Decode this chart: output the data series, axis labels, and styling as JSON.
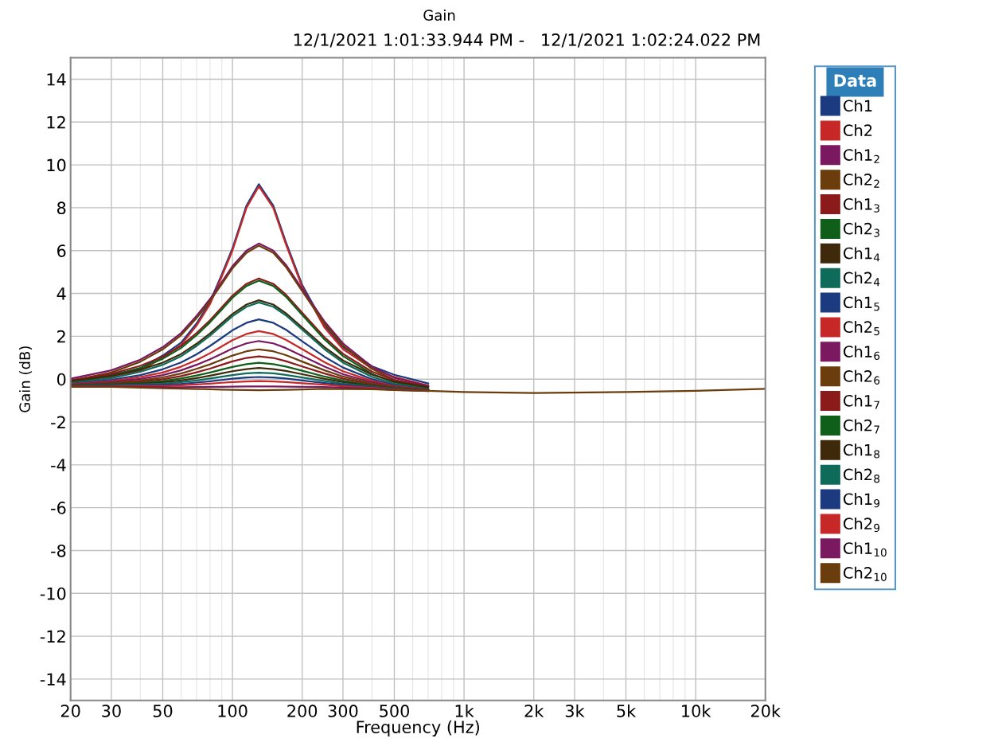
{
  "chart_data": {
    "type": "line",
    "title": "Gain",
    "subtitle": "12/1/2021 1:01:33.944 PM -   12/1/2021 1:02:24.022 PM",
    "xlabel": "Frequency (Hz)",
    "ylabel": "Gain (dB)",
    "legend_title": "Data",
    "log": "x",
    "grid": true,
    "legend": "right",
    "marker": "none",
    "line_style": "solid",
    "x": [
      20,
      30,
      40,
      50,
      60,
      70,
      80,
      90,
      100,
      115,
      130,
      150,
      170,
      200,
      250,
      300,
      400,
      500,
      700,
      1000,
      2000,
      5000,
      10000,
      20000
    ],
    "xlim": [
      20,
      20000
    ],
    "ylim": [
      -15,
      15
    ],
    "xticks": [
      20,
      30,
      50,
      100,
      200,
      300,
      500,
      {
        "value": 1000,
        "label": "1k"
      },
      {
        "value": 2000,
        "label": "2k"
      },
      {
        "value": 3000,
        "label": "3k"
      },
      {
        "value": 5000,
        "label": "5k"
      },
      {
        "value": 10000,
        "label": "10k"
      },
      {
        "value": 20000,
        "label": "20k"
      }
    ],
    "yticks": [
      -14,
      -12,
      -10,
      -8,
      -6,
      -4,
      -2,
      0,
      2,
      4,
      6,
      8,
      10,
      12,
      14
    ],
    "series": [
      {
        "name": "Ch1",
        "color": "#1c3a80",
        "values": [
          -0.1,
          0.2,
          0.5,
          1.1,
          1.7,
          2.6,
          3.6,
          4.9,
          6.1,
          8.1,
          9.1,
          8.1,
          6.4,
          4.4,
          2.5,
          1.5,
          0.6,
          0.2,
          -0.2,
          null,
          null,
          null,
          null,
          null
        ]
      },
      {
        "name": "Ch2",
        "color": "#c62828",
        "values": [
          -0.2,
          0.1,
          0.4,
          1.0,
          1.6,
          2.5,
          3.5,
          4.8,
          6.0,
          8.0,
          9.0,
          8.0,
          6.3,
          4.3,
          2.4,
          1.4,
          0.5,
          0.1,
          -0.3,
          null,
          null,
          null,
          null,
          null
        ]
      },
      {
        "name": "Ch1$_{2}$",
        "color": "#7a1860",
        "values": [
          0.02,
          0.41,
          0.91,
          1.49,
          2.15,
          2.95,
          3.74,
          4.54,
          5.27,
          6.0,
          6.33,
          6.0,
          5.34,
          4.21,
          2.68,
          1.67,
          0.58,
          0.06,
          -0.32,
          null,
          null,
          null,
          null,
          null
        ]
      },
      {
        "name": "Ch2$_{2}$",
        "color": "#6b3d0c",
        "values": [
          -0.08,
          0.31,
          0.81,
          1.39,
          2.05,
          2.85,
          3.64,
          4.44,
          5.17,
          5.9,
          6.23,
          5.9,
          5.24,
          4.11,
          2.58,
          1.57,
          0.48,
          -0.04,
          -0.42,
          null,
          null,
          null,
          null,
          null
        ]
      },
      {
        "name": "Ch1$_{3}$",
        "color": "#8b1a1a",
        "values": [
          -0.05,
          0.25,
          0.62,
          1.05,
          1.55,
          2.15,
          2.75,
          3.35,
          3.9,
          4.45,
          4.7,
          4.45,
          3.95,
          3.1,
          1.95,
          1.18,
          0.35,
          -0.05,
          -0.35,
          null,
          null,
          null,
          null,
          null
        ]
      },
      {
        "name": "Ch2$_{3}$",
        "color": "#0f5f1a",
        "values": [
          -0.15,
          0.15,
          0.52,
          0.95,
          1.45,
          2.05,
          2.65,
          3.25,
          3.8,
          4.35,
          4.6,
          4.35,
          3.85,
          3.0,
          1.85,
          1.08,
          0.25,
          -0.15,
          -0.45,
          null,
          null,
          null,
          null,
          null
        ]
      },
      {
        "name": "Ch1$_{4}$",
        "color": "#3e2a0a",
        "values": [
          -0.09,
          0.15,
          0.44,
          0.77,
          1.17,
          1.65,
          2.13,
          2.61,
          3.04,
          3.48,
          3.68,
          3.48,
          3.08,
          2.41,
          1.49,
          0.87,
          0.21,
          -0.12,
          -0.37,
          null,
          null,
          null,
          null,
          null
        ]
      },
      {
        "name": "Ch2$_{4}$",
        "color": "#0e6b5a",
        "values": [
          -0.19,
          0.05,
          0.34,
          0.67,
          1.07,
          1.55,
          2.03,
          2.51,
          2.94,
          3.38,
          3.58,
          3.38,
          2.98,
          2.31,
          1.39,
          0.77,
          0.11,
          -0.22,
          -0.47,
          null,
          null,
          null,
          null,
          null
        ]
      },
      {
        "name": "Ch1$_{5}$",
        "color": "#1c3a80",
        "values": [
          -0.22,
          -0.03,
          0.19,
          0.46,
          0.78,
          1.16,
          1.55,
          1.93,
          2.28,
          2.63,
          2.79,
          2.63,
          2.31,
          1.77,
          1.04,
          0.54,
          0.0,
          -0.28,
          -0.49,
          null,
          null,
          null,
          null,
          null
        ]
      },
      {
        "name": "Ch2$_{5}$",
        "color": "#c62828",
        "values": [
          -0.24,
          -0.09,
          0.1,
          0.31,
          0.58,
          0.89,
          1.21,
          1.53,
          1.82,
          2.11,
          2.24,
          2.11,
          1.84,
          1.4,
          0.79,
          0.37,
          -0.08,
          -0.32,
          -0.5,
          null,
          null,
          null,
          null,
          null
        ]
      },
      {
        "name": "Ch1$_{6}$",
        "color": "#7a1860",
        "values": [
          -0.26,
          -0.13,
          0.01,
          0.19,
          0.41,
          0.67,
          0.93,
          1.19,
          1.43,
          1.67,
          1.78,
          1.67,
          1.45,
          1.08,
          0.58,
          0.23,
          -0.14,
          -0.35,
          -0.51,
          null,
          null,
          null,
          null,
          null
        ]
      },
      {
        "name": "Ch2$_{6}$",
        "color": "#6b3d0c",
        "values": [
          -0.28,
          -0.17,
          -0.06,
          0.08,
          0.26,
          0.48,
          0.69,
          0.91,
          1.1,
          1.3,
          1.39,
          1.3,
          1.12,
          0.82,
          0.41,
          0.12,
          -0.2,
          -0.37,
          -0.51,
          null,
          null,
          null,
          null,
          null
        ]
      },
      {
        "name": "Ch1$_{7}$",
        "color": "#8b1a1a",
        "values": [
          -0.29,
          -0.2,
          -0.12,
          -0.01,
          0.14,
          0.32,
          0.49,
          0.67,
          0.83,
          0.99,
          1.06,
          0.99,
          0.84,
          0.59,
          0.26,
          0.02,
          -0.25,
          -0.4,
          -0.52,
          null,
          null,
          null,
          null,
          null
        ]
      },
      {
        "name": "Ch2$_{7}$",
        "color": "#0f5f1a",
        "values": [
          -0.3,
          -0.23,
          -0.17,
          -0.09,
          0.03,
          0.17,
          0.31,
          0.45,
          0.57,
          0.7,
          0.76,
          0.7,
          0.59,
          0.39,
          0.12,
          -0.07,
          -0.29,
          -0.42,
          -0.53,
          null,
          null,
          null,
          null,
          null
        ]
      },
      {
        "name": "Ch1$_{8}$",
        "color": "#3e2a0a",
        "values": [
          -0.31,
          -0.26,
          -0.21,
          -0.15,
          -0.06,
          0.05,
          0.16,
          0.27,
          0.37,
          0.47,
          0.52,
          0.47,
          0.38,
          0.23,
          0.01,
          -0.14,
          -0.32,
          -0.44,
          -0.53,
          null,
          null,
          null,
          null,
          null
        ]
      },
      {
        "name": "Ch2$_{8}$",
        "color": "#0e6b5a",
        "values": [
          -0.32,
          -0.28,
          -0.25,
          -0.21,
          -0.14,
          -0.06,
          0.03,
          0.11,
          0.19,
          0.27,
          0.3,
          0.27,
          0.2,
          0.08,
          -0.09,
          -0.21,
          -0.35,
          -0.45,
          -0.54,
          null,
          null,
          null,
          null,
          null
        ]
      },
      {
        "name": "Ch1$_{9}$",
        "color": "#1c3a80",
        "values": [
          -0.33,
          -0.3,
          -0.29,
          -0.27,
          -0.22,
          -0.16,
          -0.1,
          -0.04,
          0.02,
          0.08,
          0.1,
          0.08,
          0.03,
          -0.06,
          -0.18,
          -0.27,
          -0.38,
          -0.47,
          -0.54,
          null,
          null,
          null,
          null,
          null
        ]
      },
      {
        "name": "Ch2$_{9}$",
        "color": "#c62828",
        "values": [
          -0.34,
          -0.32,
          -0.32,
          -0.32,
          -0.29,
          -0.25,
          -0.21,
          -0.17,
          -0.14,
          -0.11,
          -0.09,
          -0.11,
          -0.14,
          -0.19,
          -0.26,
          -0.33,
          -0.41,
          -0.48,
          -0.55,
          null,
          null,
          null,
          null,
          null
        ]
      },
      {
        "name": "Ch1$_{10}$",
        "color": "#7a1860",
        "values": [
          -0.35,
          -0.34,
          -0.37,
          -0.38,
          -0.38,
          -0.37,
          -0.36,
          -0.36,
          -0.35,
          -0.34,
          -0.34,
          -0.34,
          -0.35,
          -0.36,
          -0.37,
          -0.4,
          -0.44,
          -0.5,
          -0.55,
          null,
          null,
          null,
          null,
          null
        ]
      },
      {
        "name": "Ch2$_{10}$",
        "color": "#6b3d0c",
        "values": [
          -0.36,
          -0.36,
          -0.4,
          -0.43,
          -0.44,
          -0.46,
          -0.47,
          -0.49,
          -0.5,
          -0.51,
          -0.52,
          -0.51,
          -0.5,
          -0.48,
          -0.45,
          -0.46,
          -0.47,
          -0.51,
          -0.55,
          -0.6,
          -0.65,
          -0.6,
          -0.55,
          -0.45
        ]
      }
    ]
  }
}
